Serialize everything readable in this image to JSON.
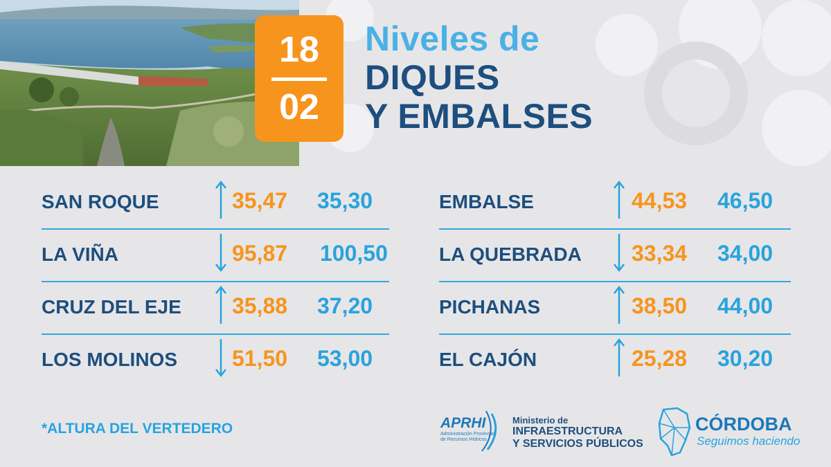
{
  "date": {
    "day": "18",
    "month": "02"
  },
  "title": {
    "line1": "Niveles de",
    "line2": "DIQUES",
    "line3": "Y EMBALSES"
  },
  "colors": {
    "orange": "#f7941d",
    "light_blue": "#29a3dd",
    "dark_blue": "#1d4e7e",
    "background": "#e6e6e8"
  },
  "reservoirs_left": [
    {
      "name": "SAN ROQUE",
      "trend": "up-arrow-icon",
      "current": "35,47",
      "max": "35,30"
    },
    {
      "name": "LA VIÑA",
      "trend": "down-arrow-icon",
      "current": "95,87",
      "max": "100,50"
    },
    {
      "name": "CRUZ DEL EJE",
      "trend": "up-arrow-icon",
      "current": "35,88",
      "max": "37,20"
    },
    {
      "name": "LOS MOLINOS",
      "trend": "down-arrow-icon",
      "current": "51,50",
      "max": "53,00"
    }
  ],
  "reservoirs_right": [
    {
      "name": "EMBALSE",
      "trend": "up-arrow-icon",
      "current": "44,53",
      "max": "46,50"
    },
    {
      "name": "LA QUEBRADA",
      "trend": "down-arrow-icon",
      "current": "33,34",
      "max": "34,00"
    },
    {
      "name": "PICHANAS",
      "trend": "up-arrow-icon",
      "current": "38,50",
      "max": "44,00"
    },
    {
      "name": "EL CAJÓN",
      "trend": "up-arrow-icon",
      "current": "25,28",
      "max": "30,20"
    }
  ],
  "footnote": "*ALTURA DEL VERTEDERO",
  "logos": {
    "aprhi": "APRHI",
    "aprhi_sub": "Administración Provincial de Recursos Hídricos",
    "ministerio_line1": "Ministerio de",
    "ministerio_line2": "INFRAESTRUCTURA",
    "ministerio_line3": "Y SERVICIOS PÚBLICOS",
    "cordoba": "CÓRDOBA",
    "cordoba_slogan": "Seguimos haciendo"
  }
}
